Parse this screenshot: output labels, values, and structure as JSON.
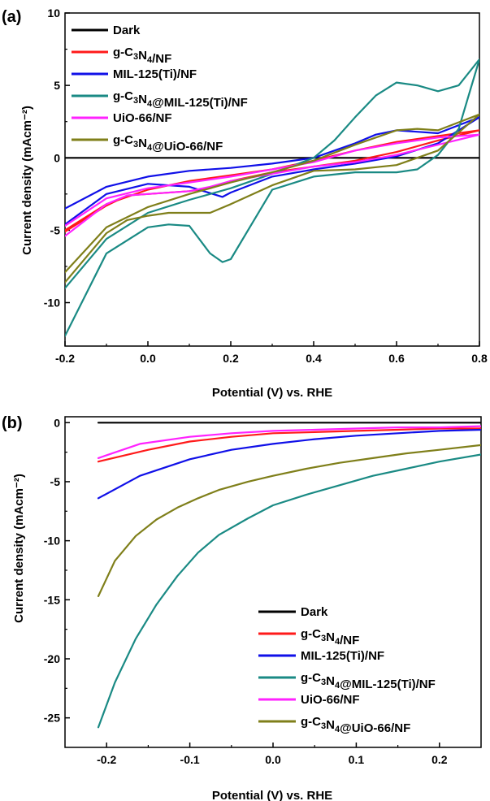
{
  "colors": {
    "dark": "#000000",
    "gc3n4": "#ff1a1a",
    "mil125": "#1010e8",
    "gc3n4_mil125": "#1a8a84",
    "uio66": "#ff22ff",
    "gc3n4_uio66": "#7f7f1a"
  },
  "chart_data": [
    {
      "panel_label": "(a)",
      "type": "line",
      "xlabel": "Potential (V) vs. RHE",
      "ylabel": "Current density (mAcm⁻²)",
      "xlim": [
        -0.2,
        0.8
      ],
      "ylim": [
        -13,
        10
      ],
      "xticks": [
        "-0.2",
        "0.0",
        "0.2",
        "0.4",
        "0.6",
        "0.8"
      ],
      "yticks": [
        "10",
        "5",
        "0",
        "-5",
        "-10"
      ],
      "xtick_values": [
        -0.2,
        0,
        0.2,
        0.4,
        0.6,
        0.8
      ],
      "ytick_values": [
        10,
        5,
        0,
        -5,
        -10
      ],
      "legend_position": "top-left",
      "series": [
        {
          "name": "Dark",
          "color_key": "dark",
          "x": [
            -0.2,
            0.8
          ],
          "y": [
            0,
            0
          ]
        },
        {
          "name": "g-C₃N₄/NF",
          "color_key": "gc3n4",
          "x": [
            -0.2,
            -0.1,
            0.0,
            0.1,
            0.2,
            0.3,
            0.4,
            0.5,
            0.6,
            0.7,
            0.8,
            0.7,
            0.6,
            0.5,
            0.4,
            0.3,
            0.2,
            0.15,
            0.1,
            0.0,
            -0.05,
            -0.1,
            -0.2
          ],
          "y": [
            -5.0,
            -3.2,
            -2.2,
            -1.6,
            -1.2,
            -0.8,
            -0.2,
            0.5,
            1.1,
            1.5,
            1.9,
            1.2,
            0.4,
            -0.2,
            -0.6,
            -1.0,
            -1.6,
            -2.1,
            -2.3,
            -2.5,
            -2.6,
            -3.3,
            -5.1
          ]
        },
        {
          "name": "MIL-125(Ti)/NF",
          "color_key": "mil125",
          "x": [
            -0.2,
            -0.1,
            0.0,
            0.1,
            0.2,
            0.3,
            0.4,
            0.5,
            0.55,
            0.6,
            0.7,
            0.8,
            0.7,
            0.6,
            0.5,
            0.4,
            0.3,
            0.2,
            0.18,
            0.1,
            0.0,
            -0.1,
            -0.2
          ],
          "y": [
            -3.5,
            -2.0,
            -1.3,
            -0.9,
            -0.7,
            -0.4,
            0.0,
            1.0,
            1.6,
            1.9,
            1.7,
            2.8,
            1.0,
            0.1,
            -0.4,
            -0.8,
            -1.3,
            -2.4,
            -2.7,
            -2.0,
            -1.8,
            -2.5,
            -4.6
          ]
        },
        {
          "name": "g-C₃N₄@MIL-125(Ti)/NF",
          "color_key": "gc3n4_mil125",
          "x": [
            -0.2,
            -0.1,
            0.0,
            0.1,
            0.2,
            0.3,
            0.4,
            0.45,
            0.5,
            0.55,
            0.6,
            0.65,
            0.7,
            0.75,
            0.8,
            0.75,
            0.7,
            0.65,
            0.6,
            0.5,
            0.4,
            0.3,
            0.2,
            0.18,
            0.15,
            0.1,
            0.05,
            0.0,
            -0.1,
            -0.2
          ],
          "y": [
            -9.0,
            -5.6,
            -3.8,
            -2.9,
            -2.1,
            -1.1,
            0.0,
            1.2,
            2.8,
            4.3,
            5.2,
            5.0,
            4.6,
            5.0,
            6.8,
            2.0,
            0.2,
            -0.8,
            -1.0,
            -1.0,
            -1.3,
            -2.2,
            -7.0,
            -7.2,
            -6.6,
            -4.7,
            -4.6,
            -4.8,
            -6.6,
            -12.3
          ]
        },
        {
          "name": "UiO-66/NF",
          "color_key": "uio66",
          "x": [
            -0.2,
            -0.1,
            0.0,
            0.1,
            0.2,
            0.3,
            0.4,
            0.5,
            0.6,
            0.7,
            0.8,
            0.7,
            0.6,
            0.5,
            0.4,
            0.3,
            0.2,
            0.15,
            0.1,
            0.0,
            -0.05,
            -0.1,
            -0.2
          ],
          "y": [
            -4.7,
            -2.8,
            -2.1,
            -1.7,
            -1.3,
            -0.8,
            -0.3,
            0.5,
            1.0,
            1.4,
            1.6,
            0.9,
            0.2,
            -0.3,
            -0.6,
            -1.1,
            -1.6,
            -2.0,
            -2.3,
            -2.5,
            -2.6,
            -3.2,
            -5.4
          ]
        },
        {
          "name": "g-C₃N₄@UiO-66/NF",
          "color_key": "gc3n4_uio66",
          "x": [
            -0.2,
            -0.1,
            0.0,
            0.1,
            0.2,
            0.3,
            0.4,
            0.5,
            0.6,
            0.65,
            0.7,
            0.8,
            0.7,
            0.6,
            0.5,
            0.4,
            0.3,
            0.2,
            0.15,
            0.1,
            0.05,
            0.0,
            -0.05,
            -0.1,
            -0.2
          ],
          "y": [
            -7.9,
            -4.8,
            -3.4,
            -2.5,
            -1.7,
            -1.0,
            -0.2,
            0.9,
            1.9,
            2.0,
            1.9,
            3.0,
            0.5,
            -0.5,
            -0.8,
            -0.9,
            -1.9,
            -3.2,
            -3.8,
            -3.8,
            -3.8,
            -4.0,
            -4.3,
            -5.2,
            -8.6
          ]
        }
      ]
    },
    {
      "panel_label": "(b)",
      "type": "line",
      "xlabel": "Potential (V) vs. RHE",
      "ylabel": "Current density (mAcm⁻²)",
      "xlim": [
        -0.25,
        0.25
      ],
      "ylim": [
        -27.5,
        0.5
      ],
      "xticks": [
        "-0.2",
        "-0.1",
        "0.0",
        "0.1",
        "0.2"
      ],
      "yticks": [
        "0",
        "-5",
        "-10",
        "-15",
        "-20",
        "-25"
      ],
      "xtick_values": [
        -0.2,
        -0.1,
        0,
        0.1,
        0.2
      ],
      "ytick_values": [
        0,
        -5,
        -10,
        -15,
        -20,
        -25
      ],
      "legend_position": "bottom-right",
      "series": [
        {
          "name": "Dark",
          "color_key": "dark",
          "x": [
            -0.21,
            0.25
          ],
          "y": [
            0,
            0
          ]
        },
        {
          "name": "g-C₃N₄/NF",
          "color_key": "gc3n4",
          "x": [
            -0.21,
            -0.15,
            -0.1,
            -0.05,
            0.0,
            0.05,
            0.1,
            0.15,
            0.2,
            0.25
          ],
          "y": [
            -3.3,
            -2.3,
            -1.6,
            -1.2,
            -0.9,
            -0.8,
            -0.7,
            -0.6,
            -0.5,
            -0.5
          ]
        },
        {
          "name": "MIL-125(Ti)/NF",
          "color_key": "mil125",
          "x": [
            -0.21,
            -0.16,
            -0.1,
            -0.05,
            0.0,
            0.05,
            0.1,
            0.15,
            0.2,
            0.25
          ],
          "y": [
            -6.4,
            -4.5,
            -3.1,
            -2.3,
            -1.8,
            -1.4,
            -1.1,
            -0.9,
            -0.7,
            -0.6
          ]
        },
        {
          "name": "g-C₃N₄@MIL-125(Ti)/NF",
          "color_key": "gc3n4_mil125",
          "x": [
            -0.21,
            -0.19,
            -0.165,
            -0.14,
            -0.115,
            -0.09,
            -0.065,
            -0.03,
            0.0,
            0.04,
            0.08,
            0.12,
            0.16,
            0.2,
            0.25
          ],
          "y": [
            -25.8,
            -22.0,
            -18.3,
            -15.4,
            -13.0,
            -11.0,
            -9.5,
            -8.1,
            -7.0,
            -6.1,
            -5.3,
            -4.5,
            -3.9,
            -3.3,
            -2.7
          ]
        },
        {
          "name": "UiO-66/NF",
          "color_key": "uio66",
          "x": [
            -0.21,
            -0.16,
            -0.1,
            -0.05,
            0.0,
            0.05,
            0.1,
            0.15,
            0.2,
            0.25
          ],
          "y": [
            -3.0,
            -1.8,
            -1.2,
            -0.9,
            -0.7,
            -0.6,
            -0.5,
            -0.4,
            -0.4,
            -0.3
          ]
        },
        {
          "name": "g-C₃N₄@UiO-66/NF",
          "color_key": "gc3n4_uio66",
          "x": [
            -0.21,
            -0.19,
            -0.165,
            -0.14,
            -0.115,
            -0.09,
            -0.065,
            -0.03,
            0.0,
            0.04,
            0.08,
            0.12,
            0.16,
            0.2,
            0.25
          ],
          "y": [
            -14.7,
            -11.7,
            -9.6,
            -8.2,
            -7.2,
            -6.4,
            -5.7,
            -5.0,
            -4.5,
            -3.9,
            -3.4,
            -3.0,
            -2.6,
            -2.3,
            -1.9
          ]
        }
      ]
    }
  ]
}
